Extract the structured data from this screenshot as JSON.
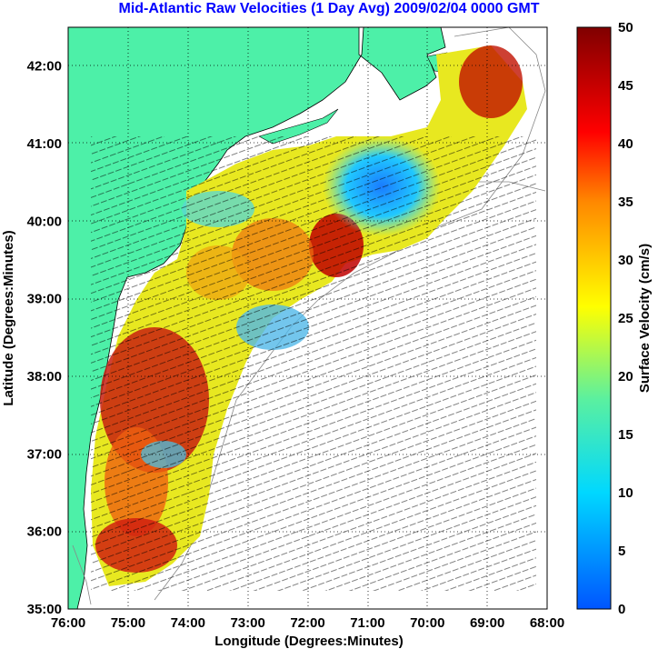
{
  "title": "Mid-Atlantic Raw Velocities (1 Day Avg) 2009/02/04 0000 GMT",
  "xlabel": "Longitude (Degrees:Minutes)",
  "ylabel": "Latitude (Degrees:Minutes)",
  "colorbar_label": "Surface Velocity (cm/s)",
  "x_ticks": [
    "76:00",
    "75:00",
    "74:00",
    "73:00",
    "72:00",
    "71:00",
    "70:00",
    "69:00",
    "68:00"
  ],
  "y_ticks": [
    "35:00",
    "36:00",
    "37:00",
    "38:00",
    "39:00",
    "40:00",
    "41:00",
    "42:00"
  ],
  "colorbar_ticks": [
    "0",
    "5",
    "10",
    "15",
    "20",
    "25",
    "30",
    "35",
    "40",
    "45",
    "50"
  ],
  "colors": {
    "land": "#4df0a8",
    "title": "#0000ff",
    "colormap": [
      "#0055ff",
      "#00d8ff",
      "#5af0a0",
      "#ffff00",
      "#ff8800",
      "#ff0000",
      "#800000"
    ]
  },
  "chart_data": {
    "type": "heatmap",
    "xlim": [
      -76,
      -68
    ],
    "ylim": [
      35,
      42.5
    ],
    "clim": [
      0,
      50
    ],
    "grid": true,
    "colorbar": "right"
  }
}
